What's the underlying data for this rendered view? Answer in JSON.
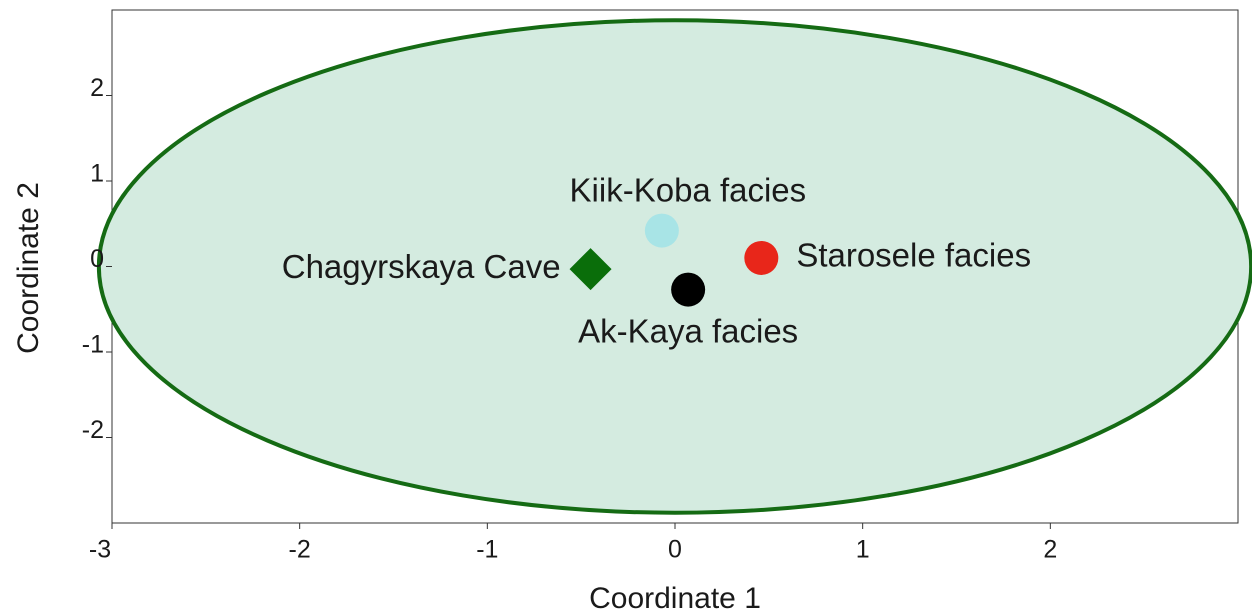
{
  "chart_data": {
    "type": "scatter",
    "xlabel": "Coordinate 1",
    "ylabel": "Coordinate 2",
    "xlim": [
      -3,
      3
    ],
    "ylim": [
      -3,
      3
    ],
    "xticks": [
      -3,
      -2,
      -1,
      0,
      1,
      2
    ],
    "yticks": [
      -2,
      -1,
      0,
      1,
      2
    ],
    "ellipse": {
      "cx": 0,
      "cy": 0,
      "rx": 3.07,
      "ry": 2.88,
      "fill": "#d4ebe0",
      "stroke": "#156b14"
    },
    "series": [
      {
        "name": "Chagyrskaya Cave",
        "color": "#0a6e0a",
        "marker": "diamond",
        "label_position": "left",
        "x": [
          -0.45
        ],
        "values": [
          -0.03
        ]
      },
      {
        "name": "Kiik-Koba facies",
        "color": "#a8e4e6",
        "marker": "circle",
        "label_position": "above",
        "x": [
          -0.07
        ],
        "values": [
          0.42
        ]
      },
      {
        "name": "Starosele facies",
        "color": "#e8261a",
        "marker": "circle",
        "label_position": "right",
        "x": [
          0.46
        ],
        "values": [
          0.1
        ]
      },
      {
        "name": "Ak-Kaya facies",
        "color": "#000000",
        "marker": "circle",
        "label_position": "below",
        "x": [
          0.07
        ],
        "values": [
          -0.27
        ]
      }
    ]
  }
}
